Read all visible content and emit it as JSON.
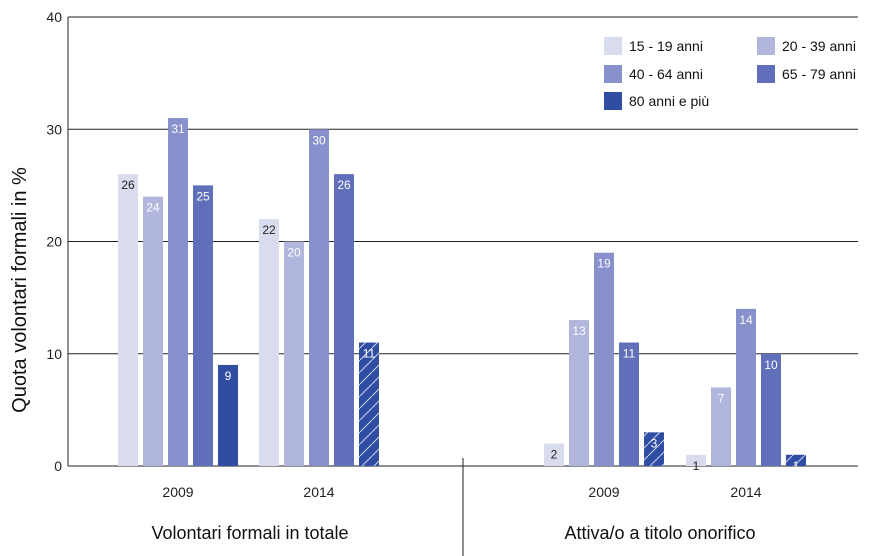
{
  "chart_data": {
    "type": "bar",
    "title": "",
    "ylabel": "Quota volontari formali in %",
    "ylim": [
      0,
      40
    ],
    "yticks": [
      0,
      10,
      20,
      30,
      40
    ],
    "grid": true,
    "legend_position": "top-right",
    "groups": [
      {
        "title": "Volontari formali in totale",
        "categories": [
          "2009",
          "2014"
        ]
      },
      {
        "title": "Attiva/o a titolo onorifico",
        "categories": [
          "2009",
          "2014"
        ]
      }
    ],
    "series": [
      {
        "name": "15 - 19 anni",
        "color": "#d9dced",
        "label_color": "#222222",
        "values": [
          [
            26,
            22
          ],
          [
            2,
            1
          ]
        ]
      },
      {
        "name": "20 - 39 anni",
        "color": "#b1b6dc",
        "label_color": "#ffffff",
        "values": [
          [
            24,
            20
          ],
          [
            13,
            7
          ]
        ]
      },
      {
        "name": "40 - 64 anni",
        "color": "#8891cb",
        "label_color": "#ffffff",
        "values": [
          [
            31,
            30
          ],
          [
            19,
            14
          ]
        ]
      },
      {
        "name": "65 - 79 anni",
        "color": "#5f6fb9",
        "label_color": "#ffffff",
        "values": [
          [
            25,
            26
          ],
          [
            11,
            10
          ]
        ]
      },
      {
        "name": "80 anni e più",
        "color": "#2f4ea3",
        "label_color": "#ffffff",
        "values": [
          [
            9,
            11
          ],
          [
            3,
            1
          ]
        ],
        "hatched_flags": [
          [
            false,
            true
          ],
          [
            true,
            true
          ]
        ]
      }
    ]
  }
}
